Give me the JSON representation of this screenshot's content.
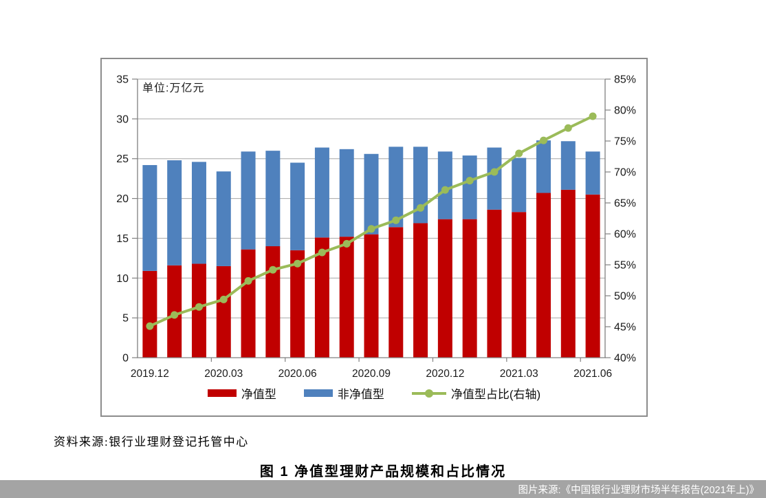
{
  "texts": {
    "source_note": "资料来源:银行业理财登记托管中心",
    "caption": "图 1  净值型理财产品规模和占比情况",
    "watermark": "图片来源:《中国银行业理财市场半年报告(2021年上)》"
  },
  "colors": {
    "net_value_bar": "#C00000",
    "non_net_value_bar": "#4F81BD",
    "ratio_line": "#9BBB59",
    "gridline": "#a6a6a6",
    "axis": "#808080",
    "tick_label": "#1a1a1a",
    "watermark_band": "#a4a4a4"
  },
  "chart_data": {
    "type": "bar",
    "subtype": "stacked bars with secondary-axis line",
    "title": "净值型理财产品规模和占比情况",
    "unit_label": "单位:万亿元",
    "categories": [
      "2019.12",
      "2020.01",
      "2020.02",
      "2020.03",
      "2020.04",
      "2020.05",
      "2020.06",
      "2020.07",
      "2020.08",
      "2020.09",
      "2020.10",
      "2020.11",
      "2020.12",
      "2021.01",
      "2021.02",
      "2021.03",
      "2021.04",
      "2021.05",
      "2021.06"
    ],
    "x_tick_labels": [
      "2019.12",
      "2020.03",
      "2020.06",
      "2020.09",
      "2020.12",
      "2021.03",
      "2021.06"
    ],
    "x_tick_slots": [
      0,
      3,
      6,
      9,
      12,
      15,
      18
    ],
    "series": [
      {
        "name": "净值型",
        "type": "bar",
        "stack": true,
        "axis": "left",
        "color": "#C00000",
        "values": [
          10.9,
          11.6,
          11.8,
          11.5,
          13.6,
          14.0,
          13.5,
          15.1,
          15.2,
          15.5,
          16.4,
          16.9,
          17.4,
          17.4,
          18.6,
          18.3,
          20.7,
          21.1,
          20.5
        ]
      },
      {
        "name": "非净值型",
        "type": "bar",
        "stack": true,
        "axis": "left",
        "color": "#4F81BD",
        "values": [
          13.3,
          13.2,
          12.8,
          11.9,
          12.3,
          12.0,
          11.0,
          11.3,
          11.0,
          10.1,
          10.1,
          9.6,
          8.5,
          8.0,
          7.8,
          6.8,
          6.6,
          6.1,
          5.4
        ]
      },
      {
        "name": "净值型占比(右轴)",
        "type": "line",
        "axis": "right",
        "color": "#9BBB59",
        "values": [
          45.1,
          46.9,
          48.2,
          49.4,
          52.4,
          54.2,
          55.2,
          57.0,
          58.4,
          60.8,
          62.2,
          64.2,
          67.1,
          68.6,
          70.0,
          73.0,
          75.1,
          77.1,
          79.0
        ]
      }
    ],
    "left_axis": {
      "min": 0,
      "max": 35,
      "step": 5,
      "ticks": [
        "0",
        "5",
        "10",
        "15",
        "20",
        "25",
        "30",
        "35"
      ]
    },
    "right_axis": {
      "min": 40,
      "max": 85,
      "step": 5,
      "ticks": [
        "40%",
        "45%",
        "50%",
        "55%",
        "60%",
        "65%",
        "70%",
        "75%",
        "80%",
        "85%"
      ]
    },
    "grid": true,
    "legend_position": "bottom"
  }
}
